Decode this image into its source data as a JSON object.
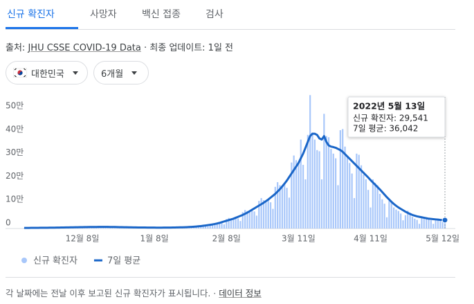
{
  "tabs": [
    "신규 확진자",
    "사망자",
    "백신 접종",
    "검사"
  ],
  "source": {
    "prefix": "출처:",
    "link": "JHU CSSE COVID-19 Data",
    "suffix": "· 최종 업데이트: 1일 전"
  },
  "filters": [
    "대한민국",
    "6개월"
  ],
  "chart_data": {
    "type": "combo",
    "categories": [
      null,
      null,
      null,
      null,
      null,
      null,
      null,
      null,
      null,
      null,
      null,
      null,
      null,
      null,
      null,
      null,
      null,
      null,
      null,
      null,
      null,
      null,
      null,
      null,
      null,
      "12월 8일",
      null,
      null,
      null,
      null,
      null,
      null,
      null,
      null,
      null,
      null,
      null,
      null,
      null,
      null,
      null,
      null,
      null,
      null,
      null,
      null,
      null,
      null,
      null,
      null,
      null,
      null,
      null,
      null,
      null,
      null,
      "1월 8일",
      null,
      null,
      null,
      null,
      null,
      null,
      null,
      null,
      null,
      null,
      null,
      null,
      null,
      null,
      null,
      null,
      null,
      null,
      null,
      null,
      null,
      null,
      null,
      null,
      null,
      null,
      null,
      null,
      null,
      null,
      "2월 8일",
      null,
      null,
      null,
      null,
      null,
      null,
      null,
      null,
      null,
      null,
      null,
      null,
      null,
      null,
      null,
      null,
      null,
      null,
      null,
      null,
      null,
      null,
      null,
      null,
      null,
      null,
      null,
      null,
      null,
      null,
      "3월 11일",
      null,
      null,
      null,
      null,
      null,
      null,
      null,
      null,
      null,
      null,
      null,
      null,
      null,
      null,
      null,
      null,
      null,
      null,
      null,
      null,
      null,
      null,
      null,
      null,
      null,
      null,
      null,
      null,
      null,
      null,
      "4월 11일",
      null,
      null,
      null,
      null,
      null,
      null,
      null,
      null,
      null,
      null,
      null,
      null,
      null,
      null,
      null,
      null,
      null,
      null,
      null,
      null,
      null,
      null,
      null,
      null,
      null,
      null,
      null,
      null,
      null,
      null,
      "5월 12일",
      null
    ],
    "series": [
      {
        "name": "신규 확진자",
        "type": "bar",
        "color": "#a8c7fa",
        "values": [
          2500,
          2200,
          1600,
          3400,
          3600,
          3300,
          3100,
          3200,
          2800,
          2000,
          4200,
          4500,
          4100,
          3800,
          3900,
          3500,
          2600,
          5400,
          5900,
          5400,
          5100,
          5300,
          4700,
          3400,
          7100,
          7600,
          6900,
          6400,
          6500,
          5600,
          4000,
          8200,
          8600,
          7700,
          7000,
          7000,
          5900,
          4100,
          8000,
          8100,
          6900,
          6100,
          5900,
          4800,
          3300,
          6400,
          6400,
          5400,
          4700,
          4600,
          3800,
          2600,
          5200,
          5300,
          4500,
          4000,
          3900,
          3200,
          2300,
          4600,
          4900,
          4400,
          4100,
          4200,
          3700,
          2800,
          5800,
          6300,
          5800,
          5600,
          6000,
          5500,
          4200,
          9200,
          10600,
          10500,
          10500,
          11700,
          11100,
          8700,
          19200,
          21900,
          21500,
          21500,
          24000,
          23000,
          18000,
          40000,
          45000,
          43000,
          42000,
          46000,
          43000,
          32000,
          70000,
          79000,
          75000,
          74000,
          80000,
          73000,
          55000,
          118000,
          130000,
          121000,
          117000,
          124000,
          112000,
          84000,
          178000,
          198000,
          185000,
          180000,
          192000,
          174000,
          132000,
          282000,
          312000,
          292000,
          280000,
          380000,
          272000,
          210000,
          400000,
          570000,
          410000,
          380000,
          335000,
          330000,
          210000,
          490000,
          395000,
          390000,
          340000,
          320000,
          300000,
          185000,
          420000,
          425000,
          350000,
          305000,
          280000,
          235000,
          130000,
          320000,
          315000,
          270000,
          230000,
          210000,
          165000,
          90000,
          210000,
          195000,
          185000,
          148000,
          125000,
          106000,
          48000,
          118000,
          111000,
          90000,
          81000,
          75000,
          64000,
          35000,
          57000,
          76000,
          68000,
          50000,
          42000,
          37000,
          20000,
          50000,
          49000,
          43000,
          40000,
          35000,
          20000,
          43000,
          42000,
          35000,
          32000,
          29541
        ]
      },
      {
        "name": "7일 평균",
        "type": "line",
        "color": "#1a66c8",
        "values": [
          2500,
          2600,
          2700,
          2800,
          2900,
          3000,
          3100,
          3200,
          3300,
          3400,
          3500,
          3600,
          3700,
          3800,
          3900,
          4100,
          4300,
          4500,
          4700,
          4900,
          5100,
          5300,
          5500,
          5700,
          5900,
          6100,
          6300,
          6400,
          6500,
          6600,
          6700,
          6800,
          6900,
          7000,
          7000,
          7000,
          6900,
          6800,
          6700,
          6500,
          6300,
          6100,
          5900,
          5700,
          5500,
          5300,
          5100,
          4900,
          4700,
          4600,
          4500,
          4400,
          4300,
          4200,
          4100,
          4000,
          3900,
          3800,
          3800,
          3800,
          3900,
          4000,
          4100,
          4200,
          4400,
          4600,
          4800,
          5000,
          5300,
          5600,
          6000,
          6500,
          7000,
          7700,
          8500,
          9500,
          10500,
          11700,
          13000,
          14500,
          16000,
          17500,
          19500,
          21500,
          24000,
          27000,
          30000,
          33000,
          36000,
          39000,
          42000,
          46000,
          50000,
          54000,
          58000,
          63000,
          68000,
          74000,
          80000,
          86000,
          92000,
          98000,
          104000,
          110000,
          117000,
          124000,
          132000,
          140000,
          148000,
          158000,
          168000,
          180000,
          192000,
          205000,
          220000,
          235000,
          250000,
          265000,
          280000,
          300000,
          320000,
          345000,
          370000,
          395000,
          405000,
          405000,
          400000,
          385000,
          380000,
          395000,
          370000,
          355000,
          350000,
          348000,
          345000,
          340000,
          335000,
          328000,
          318000,
          308000,
          298000,
          288000,
          278000,
          268000,
          258000,
          248000,
          238000,
          228000,
          218000,
          207000,
          197000,
          187000,
          177000,
          167000,
          156000,
          145000,
          134000,
          124000,
          114000,
          105000,
          97000,
          90000,
          84000,
          78000,
          72000,
          67000,
          62000,
          58000,
          55000,
          52000,
          50000,
          48000,
          46000,
          44000,
          42000,
          41000,
          40000,
          39000,
          38000,
          37000,
          36500,
          36042
        ]
      }
    ],
    "ylim": [
      0,
      600000
    ],
    "yticks": [
      0,
      {
        "value": 100000,
        "label": "10만"
      },
      {
        "value": 200000,
        "label": "20만"
      },
      {
        "value": 300000,
        "label": "30만"
      },
      {
        "value": 400000,
        "label": "40만"
      },
      {
        "value": 500000,
        "label": "50만"
      }
    ],
    "grid": false,
    "legend": "bottom",
    "tooltip": {
      "date": "2022년 5월 13일",
      "lines": [
        "신규 확진자: 29,541",
        "7일 평균: 36,042"
      ]
    }
  },
  "footer": {
    "note": "각 날짜에는 전날 이후 보고된 신규 확진자가 표시됩니다. ·",
    "link": "데이터 정보"
  }
}
